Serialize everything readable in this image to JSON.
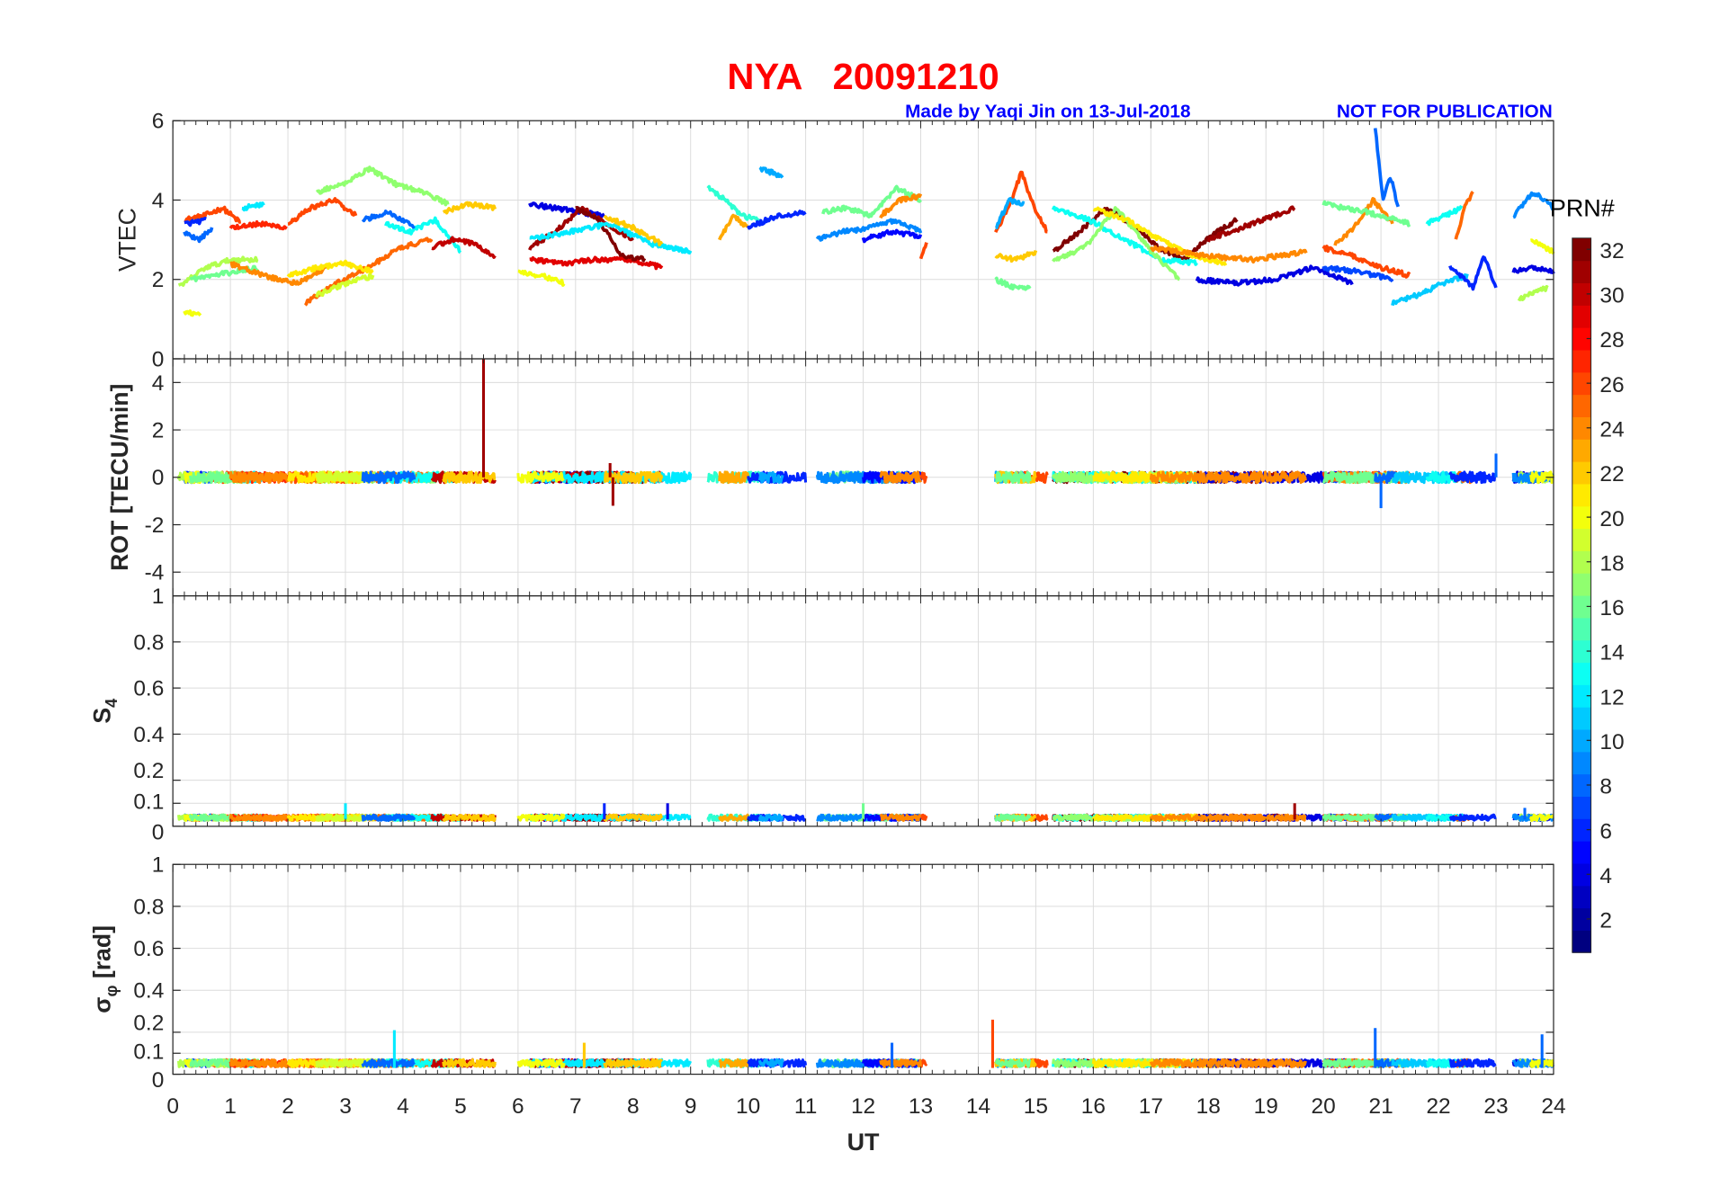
{
  "chart_data": {
    "type": "line",
    "title": "NYA   20091210",
    "subtitle": "Made by Yaqi Jin on 13-Jul-2018",
    "notice": "NOT FOR PUBLICATION",
    "xlabel": "UT",
    "xlim": [
      0,
      24
    ],
    "xticks": [
      "0",
      "1",
      "2",
      "3",
      "4",
      "5",
      "6",
      "7",
      "8",
      "9",
      "10",
      "11",
      "12",
      "13",
      "14",
      "15",
      "16",
      "17",
      "18",
      "19",
      "20",
      "21",
      "22",
      "23",
      "24"
    ],
    "colorbar": {
      "label": "PRN#",
      "range": [
        1,
        32
      ],
      "ticks": [
        "2",
        "4",
        "6",
        "8",
        "10",
        "12",
        "14",
        "16",
        "18",
        "20",
        "22",
        "24",
        "26",
        "28",
        "30",
        "32"
      ],
      "colormap": "jet"
    },
    "panels": [
      {
        "ylabel": "VTEC",
        "ylim": [
          0,
          6
        ],
        "yticks": [
          "0",
          "2",
          "4",
          "6"
        ]
      },
      {
        "ylabel": "ROT [TECU/min]",
        "ylim": [
          -5,
          5
        ],
        "yticks": [
          "-4",
          "-2",
          "0",
          "2",
          "4"
        ]
      },
      {
        "ylabel": "S",
        "ylabel_sub": "4",
        "ylim": [
          0,
          1
        ],
        "yticks": [
          "0",
          "0.1",
          "0.2",
          "0.4",
          "0.6",
          "0.8",
          "1"
        ]
      },
      {
        "ylabel": "σ",
        "ylabel_sub": "φ",
        "ylabel_suffix": " [rad]",
        "ylim": [
          0,
          1
        ],
        "yticks": [
          "0",
          "0.1",
          "0.2",
          "0.4",
          "0.6",
          "0.8",
          "1"
        ]
      }
    ],
    "tracks": [
      {
        "prn": 26,
        "ut": [
          0.2,
          1.2
        ],
        "vtec": [
          3.5,
          3.6,
          3.8,
          3.4
        ]
      },
      {
        "prn": 8,
        "ut": [
          0.2,
          0.7
        ],
        "vtec": [
          3.2,
          3.0,
          3.3
        ]
      },
      {
        "prn": 6,
        "ut": [
          0.2,
          0.6
        ],
        "vtec": [
          3.4,
          3.5
        ]
      },
      {
        "prn": 18,
        "ut": [
          0.1,
          1.5
        ],
        "vtec": [
          1.8,
          2.3,
          2.5,
          2.5
        ]
      },
      {
        "prn": 20,
        "ut": [
          0.2,
          0.5
        ],
        "vtec": [
          1.2,
          1.1
        ]
      },
      {
        "prn": 16,
        "ut": [
          0.3,
          1.5
        ],
        "vtec": [
          2.0,
          2.3
        ]
      },
      {
        "prn": 12,
        "ut": [
          1.2,
          1.6
        ],
        "vtec": [
          3.8,
          3.9
        ]
      },
      {
        "prn": 27,
        "ut": [
          1.0,
          2.0
        ],
        "vtec": [
          3.3,
          3.4,
          3.3
        ]
      },
      {
        "prn": 24,
        "ut": [
          1.0,
          2.7
        ],
        "vtec": [
          2.4,
          2.1,
          1.9,
          2.3
        ]
      },
      {
        "prn": 17,
        "ut": [
          2.5,
          4.8
        ],
        "vtec": [
          4.2,
          4.4,
          4.8,
          4.4,
          4.2,
          3.9
        ]
      },
      {
        "prn": 26,
        "ut": [
          2.0,
          3.2
        ],
        "vtec": [
          3.4,
          3.8,
          4.0,
          3.6
        ]
      },
      {
        "prn": 25,
        "ut": [
          2.3,
          4.5
        ],
        "vtec": [
          1.4,
          1.9,
          2.3,
          2.8,
          3.0
        ]
      },
      {
        "prn": 21,
        "ut": [
          2.0,
          3.5
        ],
        "vtec": [
          2.1,
          2.3,
          2.4,
          2.2
        ]
      },
      {
        "prn": 19,
        "ut": [
          2.5,
          3.5
        ],
        "vtec": [
          1.6,
          1.9,
          2.1
        ]
      },
      {
        "prn": 13,
        "ut": [
          3.7,
          5.0
        ],
        "vtec": [
          3.4,
          3.2,
          3.5,
          2.7
        ]
      },
      {
        "prn": 8,
        "ut": [
          3.3,
          4.2
        ],
        "vtec": [
          3.5,
          3.7,
          3.3
        ]
      },
      {
        "prn": 30,
        "ut": [
          4.5,
          5.6
        ],
        "vtec": [
          2.8,
          3.0,
          2.9,
          2.6
        ]
      },
      {
        "prn": 22,
        "ut": [
          4.7,
          5.6
        ],
        "vtec": [
          3.7,
          3.9,
          3.8
        ]
      },
      {
        "prn": 4,
        "ut": [
          6.2,
          7.5
        ],
        "vtec": [
          3.9,
          3.8,
          3.7,
          3.6
        ]
      },
      {
        "prn": 31,
        "ut": [
          6.2,
          8.0
        ],
        "vtec": [
          2.8,
          3.2,
          3.8,
          3.4,
          3.0
        ]
      },
      {
        "prn": 29,
        "ut": [
          6.2,
          8.5
        ],
        "vtec": [
          2.5,
          2.4,
          2.5,
          2.5,
          2.3
        ]
      },
      {
        "prn": 32,
        "ut": [
          7.0,
          8.2
        ],
        "vtec": [
          3.8,
          3.5,
          2.6,
          2.5
        ]
      },
      {
        "prn": 12,
        "ut": [
          6.2,
          9.0
        ],
        "vtec": [
          3.0,
          3.2,
          3.4,
          2.9,
          2.7
        ]
      },
      {
        "prn": 22,
        "ut": [
          7.5,
          8.5
        ],
        "vtec": [
          3.6,
          3.3,
          2.9
        ]
      },
      {
        "prn": 20,
        "ut": [
          6.0,
          6.8
        ],
        "vtec": [
          2.2,
          2.1,
          1.9
        ]
      },
      {
        "prn": 14,
        "ut": [
          9.3,
          10.2
        ],
        "vtec": [
          4.3,
          4.0,
          3.6,
          3.5
        ]
      },
      {
        "prn": 23,
        "ut": [
          9.5,
          10.0
        ],
        "vtec": [
          3.0,
          3.6,
          3.3
        ]
      },
      {
        "prn": 6,
        "ut": [
          10.0,
          11.0
        ],
        "vtec": [
          3.3,
          3.6,
          3.7
        ]
      },
      {
        "prn": 10,
        "ut": [
          10.2,
          10.6
        ],
        "vtec": [
          4.8,
          4.6
        ]
      },
      {
        "prn": 16,
        "ut": [
          11.3,
          13.0
        ],
        "vtec": [
          3.7,
          3.8,
          3.6,
          4.3,
          4.0
        ]
      },
      {
        "prn": 9,
        "ut": [
          11.2,
          13.0
        ],
        "vtec": [
          3.0,
          3.2,
          3.3,
          3.5,
          3.2
        ]
      },
      {
        "prn": 5,
        "ut": [
          12.0,
          13.0
        ],
        "vtec": [
          3.0,
          3.2,
          3.1
        ]
      },
      {
        "prn": 26,
        "ut": [
          13.0,
          13.1
        ],
        "vtec": [
          2.5,
          2.9
        ]
      },
      {
        "prn": 24,
        "ut": [
          12.3,
          13.0
        ],
        "vtec": [
          3.6,
          4.0,
          4.1
        ]
      },
      {
        "prn": 26,
        "ut": [
          14.3,
          15.2
        ],
        "vtec": [
          3.2,
          3.8,
          4.7,
          3.8,
          3.2
        ]
      },
      {
        "prn": 10,
        "ut": [
          14.3,
          14.8
        ],
        "vtec": [
          3.3,
          4.0,
          3.9
        ]
      },
      {
        "prn": 22,
        "ut": [
          14.3,
          15.0
        ],
        "vtec": [
          2.6,
          2.5,
          2.7
        ]
      },
      {
        "prn": 16,
        "ut": [
          14.3,
          14.9
        ],
        "vtec": [
          2.0,
          1.8,
          1.8
        ]
      },
      {
        "prn": 32,
        "ut": [
          15.3,
          18.5
        ],
        "vtec": [
          2.7,
          3.2,
          3.8,
          3.4,
          2.8,
          2.5,
          3.1,
          3.5
        ]
      },
      {
        "prn": 31,
        "ut": [
          18.0,
          19.5
        ],
        "vtec": [
          3.0,
          3.4,
          3.8
        ]
      },
      {
        "prn": 13,
        "ut": [
          15.3,
          17.8
        ],
        "vtec": [
          3.8,
          3.5,
          3.0,
          2.5,
          2.4
        ]
      },
      {
        "prn": 17,
        "ut": [
          15.3,
          17.5
        ],
        "vtec": [
          2.5,
          2.8,
          3.8,
          2.8,
          2.0
        ]
      },
      {
        "prn": 21,
        "ut": [
          16.0,
          18.3
        ],
        "vtec": [
          3.8,
          3.5,
          3.0,
          2.6,
          2.4
        ]
      },
      {
        "prn": 4,
        "ut": [
          17.8,
          20.5
        ],
        "vtec": [
          2.0,
          1.9,
          2.0,
          2.3,
          1.9
        ]
      },
      {
        "prn": 24,
        "ut": [
          17.0,
          19.7
        ],
        "vtec": [
          2.8,
          2.6,
          2.5,
          2.7
        ]
      },
      {
        "prn": 7,
        "ut": [
          20.0,
          21.2
        ],
        "vtec": [
          2.3,
          2.2,
          2.0
        ]
      },
      {
        "prn": 26,
        "ut": [
          20.0,
          21.5
        ],
        "vtec": [
          2.8,
          2.6,
          2.3,
          2.1
        ]
      },
      {
        "prn": 24,
        "ut": [
          20.2,
          21.2
        ],
        "vtec": [
          2.9,
          3.3,
          4.0,
          3.4
        ]
      },
      {
        "prn": 16,
        "ut": [
          20.0,
          21.5
        ],
        "vtec": [
          3.9,
          3.7,
          3.4
        ]
      },
      {
        "prn": 8,
        "ut": [
          20.9,
          21.3
        ],
        "vtec": [
          5.8,
          4.0,
          4.6,
          3.8
        ]
      },
      {
        "prn": 11,
        "ut": [
          21.2,
          22.5
        ],
        "vtec": [
          1.4,
          1.6,
          1.9,
          2.1
        ]
      },
      {
        "prn": 13,
        "ut": [
          21.8,
          22.4
        ],
        "vtec": [
          3.4,
          3.6,
          3.8
        ]
      },
      {
        "prn": 25,
        "ut": [
          22.3,
          22.6
        ],
        "vtec": [
          3.0,
          3.8,
          4.2
        ]
      },
      {
        "prn": 6,
        "ut": [
          22.2,
          23.0
        ],
        "vtec": [
          2.3,
          2.1,
          1.8,
          2.6,
          1.8
        ]
      },
      {
        "prn": 4,
        "ut": [
          23.3,
          24.0
        ],
        "vtec": [
          2.2,
          2.3,
          2.2
        ]
      },
      {
        "prn": 18,
        "ut": [
          23.4,
          23.9
        ],
        "vtec": [
          1.5,
          1.8
        ]
      },
      {
        "prn": 9,
        "ut": [
          23.3,
          24.0
        ],
        "vtec": [
          3.6,
          4.2,
          3.8
        ]
      },
      {
        "prn": 20,
        "ut": [
          23.6,
          24.0
        ],
        "vtec": [
          3.0,
          2.7
        ]
      }
    ],
    "rot_spikes": [
      {
        "prn": 31,
        "ut": 5.4,
        "value": 5.0
      },
      {
        "prn": 31,
        "ut": 7.65,
        "value": -1.2
      },
      {
        "prn": 31,
        "ut": 7.6,
        "value": 0.6
      },
      {
        "prn": 8,
        "ut": 21.0,
        "value": -1.3
      },
      {
        "prn": 8,
        "ut": 23.0,
        "value": 1.0
      }
    ],
    "s4_spikes": [
      {
        "prn": 6,
        "ut": 7.5,
        "value": 0.1
      },
      {
        "prn": 4,
        "ut": 8.6,
        "value": 0.1
      },
      {
        "prn": 31,
        "ut": 19.5,
        "value": 0.1
      },
      {
        "prn": 12,
        "ut": 3.0,
        "value": 0.1
      },
      {
        "prn": 16,
        "ut": 12.0,
        "value": 0.1
      },
      {
        "prn": 8,
        "ut": 23.5,
        "value": 0.08
      }
    ],
    "sigma_spikes": [
      {
        "prn": 12,
        "ut": 3.85,
        "value": 0.21
      },
      {
        "prn": 26,
        "ut": 14.25,
        "value": 0.26
      },
      {
        "prn": 8,
        "ut": 20.9,
        "value": 0.22
      },
      {
        "prn": 8,
        "ut": 12.5,
        "value": 0.15
      },
      {
        "prn": 8,
        "ut": 23.8,
        "value": 0.19
      },
      {
        "prn": 22,
        "ut": 7.15,
        "value": 0.15
      }
    ]
  }
}
